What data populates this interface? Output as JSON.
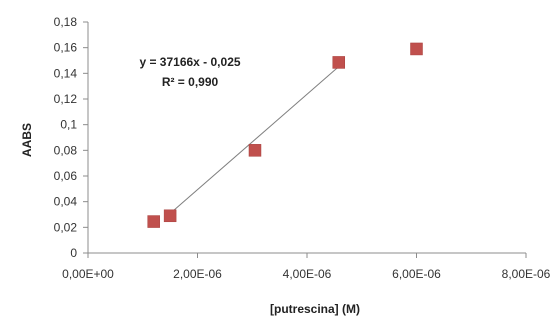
{
  "chart_data": {
    "type": "scatter",
    "title": "",
    "xlabel": "[putrescina] (M)",
    "ylabel": "AABS",
    "xlim": [
      0,
      8e-06
    ],
    "ylim": [
      0,
      0.18
    ],
    "x_ticks": [
      0,
      2e-06,
      4e-06,
      6e-06,
      8e-06
    ],
    "x_tick_labels": [
      "0,00E+00",
      "2,00E-06",
      "4,00E-06",
      "6,00E-06",
      "8,00E-06"
    ],
    "y_ticks": [
      0,
      0.02,
      0.04,
      0.06,
      0.08,
      0.1,
      0.12,
      0.14,
      0.16,
      0.18
    ],
    "y_tick_labels": [
      "0",
      "0,02",
      "0,04",
      "0,06",
      "0,08",
      "0,1",
      "0,12",
      "0,14",
      "0,16",
      "0,18"
    ],
    "grid": false,
    "legend": "none",
    "series": [
      {
        "marker": "square",
        "color": "#c0504d",
        "points": [
          {
            "x": 1.2e-06,
            "y": 0.0245
          },
          {
            "x": 1.5e-06,
            "y": 0.029
          },
          {
            "x": 3.05e-06,
            "y": 0.08
          },
          {
            "x": 4.58e-06,
            "y": 0.1485
          },
          {
            "x": 6e-06,
            "y": 0.159
          }
        ]
      }
    ],
    "trendline": {
      "slope": 37166,
      "intercept": -0.025,
      "x_range": [
        1.4e-06,
        4.6e-06
      ],
      "color": "#7f7f7f"
    },
    "annotations": {
      "equation": "y = 37166x - 0,025",
      "r_squared": "R² = 0,990"
    },
    "axis_color": "#8c8c8c"
  }
}
